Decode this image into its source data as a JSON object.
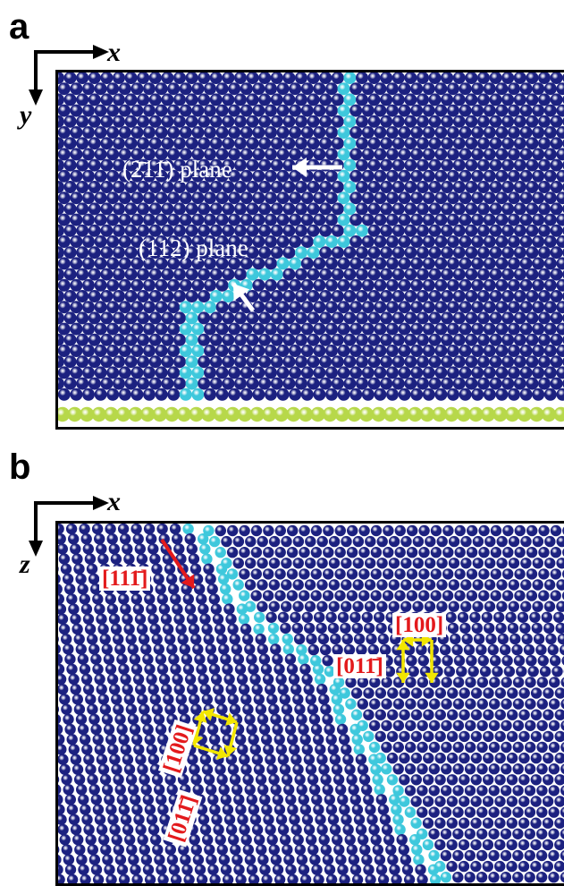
{
  "panels": {
    "a": {
      "letter": "a",
      "axis_x": "x",
      "axis_y": "y",
      "plane_top": "(2̄11̄) plane",
      "plane_bottom": "(112) plane"
    },
    "b": {
      "letter": "b",
      "axis_x": "x",
      "axis_z": "z",
      "dir_red": "[111̄]",
      "dir_100_right": "[100]",
      "dir_01bar1_right": "[011̄]",
      "dir_100_left": "[100]",
      "dir_01bar1_left": "[011̄]"
    }
  },
  "colors": {
    "atom_dark": "#1c2180",
    "atom_cyan": "#3ec8dc",
    "atom_substrate": "#b7d84a",
    "arrow_red": "#e31a1c",
    "arrow_yellow": "#f2e600",
    "arrow_white": "#ffffff"
  }
}
